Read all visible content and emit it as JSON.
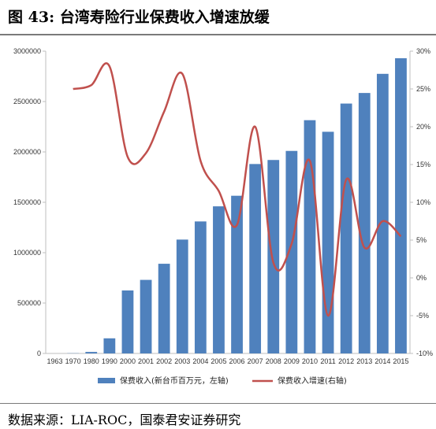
{
  "header": {
    "label": "图",
    "number": "43:",
    "text": "台湾寿险行业保费收入增速放缓"
  },
  "source": "数据来源：LIA-ROC，国泰君安证券研究",
  "chart_data": {
    "type": "bar+line",
    "categories": [
      "1963",
      "1970",
      "1980",
      "1990",
      "2000",
      "2001",
      "2002",
      "2003",
      "2004",
      "2005",
      "2006",
      "2007",
      "2008",
      "2009",
      "2010",
      "2011",
      "2012",
      "2013",
      "2014",
      "2015"
    ],
    "series": [
      {
        "name": "保费收入(新台币百万元，左轴)",
        "type": "bar",
        "axis": "left",
        "color": "#4f81bd",
        "values": [
          0,
          2000,
          15000,
          150000,
          625000,
          730000,
          890000,
          1130000,
          1310000,
          1460000,
          1565000,
          1880000,
          1920000,
          2010000,
          2315000,
          2200000,
          2480000,
          2585000,
          2775000,
          2930000
        ]
      },
      {
        "name": "保费收入增速(右轴)",
        "type": "line",
        "axis": "right",
        "color": "#c0504d",
        "values": [
          null,
          0.25,
          0.255,
          0.28,
          0.16,
          0.165,
          0.22,
          0.27,
          0.155,
          0.115,
          0.07,
          0.2,
          0.02,
          0.045,
          0.155,
          -0.05,
          0.13,
          0.04,
          0.075,
          0.055
        ]
      }
    ],
    "yaxis_left": {
      "min": 0,
      "max": 3000000,
      "step": 500000,
      "ticks": [
        "0",
        "500000",
        "1000000",
        "1500000",
        "2000000",
        "2500000",
        "3000000"
      ]
    },
    "yaxis_right": {
      "min": -0.1,
      "max": 0.3,
      "step": 0.05,
      "ticks": [
        "-10%",
        "-5%",
        "0%",
        "5%",
        "10%",
        "15%",
        "20%",
        "25%",
        "30%"
      ]
    },
    "grid": false,
    "legend_position": "bottom"
  }
}
